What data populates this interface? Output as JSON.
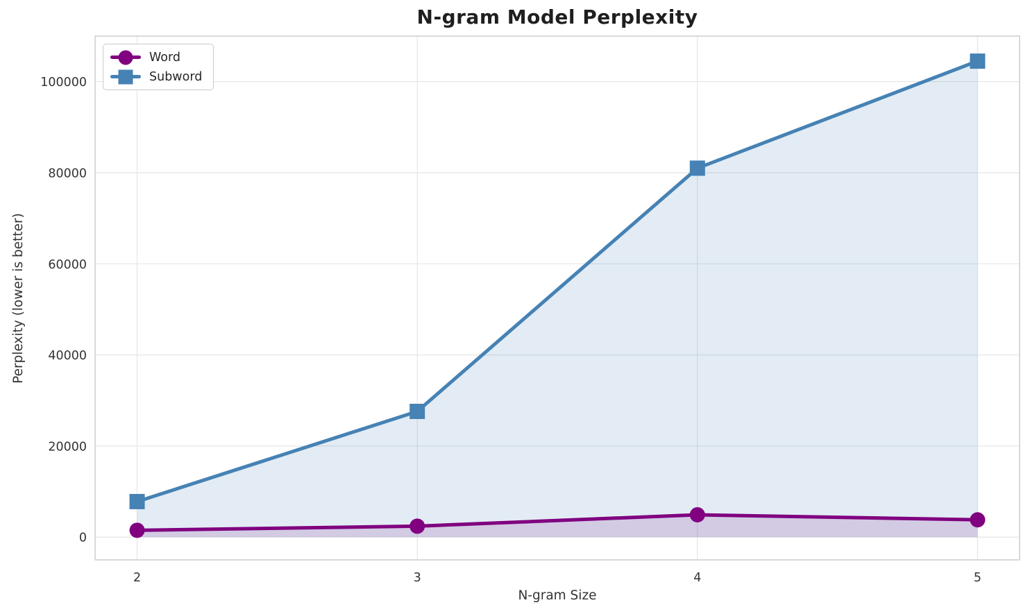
{
  "chart_data": {
    "type": "line",
    "title": "N-gram Model Perplexity",
    "xlabel": "N-gram Size",
    "ylabel": "Perplexity (lower is better)",
    "x": [
      2,
      3,
      4,
      5
    ],
    "xtick_labels": [
      "2",
      "3",
      "4",
      "5"
    ],
    "ytick_values": [
      0,
      20000,
      40000,
      60000,
      80000,
      100000
    ],
    "ytick_labels": [
      "0",
      "20000",
      "40000",
      "60000",
      "80000",
      "100000"
    ],
    "xlim": [
      1.85,
      5.15
    ],
    "ylim": [
      -5000,
      110000
    ],
    "grid": true,
    "legend_position": "upper-left",
    "area_fill": true,
    "fill_baseline": 0,
    "series": [
      {
        "name": "Word",
        "color": "#800080",
        "marker": "circle",
        "values": [
          1500,
          2400,
          4900,
          3800
        ]
      },
      {
        "name": "Subword",
        "color": "#4682b4",
        "marker": "square",
        "values": [
          7800,
          27600,
          81000,
          104500
        ]
      }
    ],
    "style": {
      "background": "#ffffff",
      "grid_color": "#e7e7e7",
      "spine_color": "#c9c9c9",
      "title_color": "#1f1f1f",
      "text_color": "#333333",
      "legend_text_color": "#262626",
      "fill_alpha": 0.15,
      "line_width": 5
    }
  }
}
